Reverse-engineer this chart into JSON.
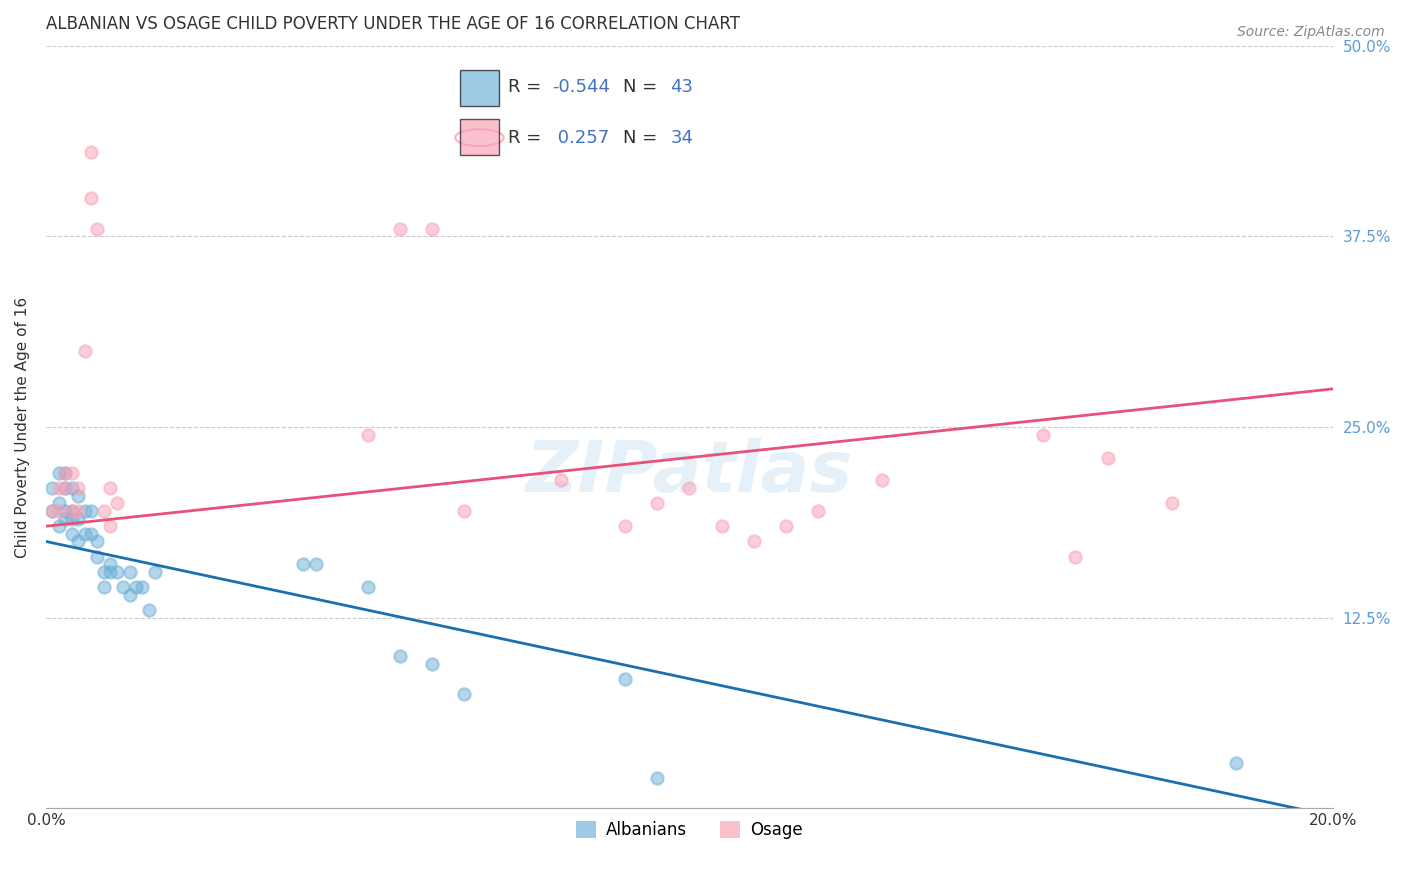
{
  "title": "ALBANIAN VS OSAGE CHILD POVERTY UNDER THE AGE OF 16 CORRELATION CHART",
  "source": "Source: ZipAtlas.com",
  "ylabel_label": "Child Poverty Under the Age of 16",
  "xlim": [
    0.0,
    0.2
  ],
  "ylim": [
    0.0,
    0.5
  ],
  "xticks": [
    0.0,
    0.05,
    0.1,
    0.15,
    0.2
  ],
  "xtick_labels": [
    "0.0%",
    "",
    "",
    "",
    "20.0%"
  ],
  "ytick_labels_right": [
    "50.0%",
    "37.5%",
    "25.0%",
    "12.5%",
    ""
  ],
  "yticks": [
    0.5,
    0.375,
    0.25,
    0.125,
    0.0
  ],
  "albanians_color": "#6baed6",
  "osage_color": "#fa9fb5",
  "albanian_line_color": "#1a6faf",
  "osage_line_color": "#e8527a",
  "legend_r_albanian": "-0.544",
  "legend_n_albanian": "43",
  "legend_r_osage": "0.257",
  "legend_n_osage": "34",
  "watermark": "ZIPatlas",
  "background_color": "#ffffff",
  "grid_color": "#cccccc",
  "albanians_x": [
    0.001,
    0.001,
    0.002,
    0.002,
    0.002,
    0.003,
    0.003,
    0.003,
    0.003,
    0.004,
    0.004,
    0.004,
    0.004,
    0.005,
    0.005,
    0.005,
    0.006,
    0.006,
    0.007,
    0.007,
    0.008,
    0.008,
    0.009,
    0.009,
    0.01,
    0.01,
    0.011,
    0.012,
    0.013,
    0.013,
    0.014,
    0.015,
    0.016,
    0.017,
    0.04,
    0.042,
    0.05,
    0.055,
    0.06,
    0.065,
    0.09,
    0.095,
    0.185
  ],
  "albanians_y": [
    0.21,
    0.195,
    0.2,
    0.185,
    0.22,
    0.195,
    0.19,
    0.21,
    0.22,
    0.18,
    0.195,
    0.19,
    0.21,
    0.175,
    0.19,
    0.205,
    0.18,
    0.195,
    0.18,
    0.195,
    0.165,
    0.175,
    0.155,
    0.145,
    0.16,
    0.155,
    0.155,
    0.145,
    0.14,
    0.155,
    0.145,
    0.145,
    0.13,
    0.155,
    0.16,
    0.16,
    0.145,
    0.1,
    0.095,
    0.075,
    0.085,
    0.02,
    0.03
  ],
  "osage_x": [
    0.001,
    0.002,
    0.002,
    0.003,
    0.003,
    0.004,
    0.004,
    0.005,
    0.005,
    0.006,
    0.007,
    0.007,
    0.008,
    0.009,
    0.01,
    0.01,
    0.011,
    0.05,
    0.055,
    0.06,
    0.065,
    0.08,
    0.09,
    0.095,
    0.1,
    0.105,
    0.11,
    0.115,
    0.12,
    0.13,
    0.155,
    0.16,
    0.165,
    0.175
  ],
  "osage_y": [
    0.195,
    0.21,
    0.195,
    0.21,
    0.22,
    0.195,
    0.22,
    0.195,
    0.21,
    0.3,
    0.43,
    0.4,
    0.38,
    0.195,
    0.21,
    0.185,
    0.2,
    0.245,
    0.38,
    0.38,
    0.195,
    0.215,
    0.185,
    0.2,
    0.21,
    0.185,
    0.175,
    0.185,
    0.195,
    0.215,
    0.245,
    0.165,
    0.23,
    0.2
  ],
  "title_fontsize": 12,
  "axis_label_fontsize": 11,
  "tick_fontsize": 11,
  "legend_fontsize": 13,
  "source_fontsize": 10,
  "marker_size": 80,
  "line_width": 2.0,
  "alb_line_x0": 0.0,
  "alb_line_y0": 0.175,
  "alb_line_x1": 0.2,
  "alb_line_y1": -0.005,
  "osage_line_x0": 0.0,
  "osage_line_y0": 0.185,
  "osage_line_x1": 0.2,
  "osage_line_y1": 0.275
}
